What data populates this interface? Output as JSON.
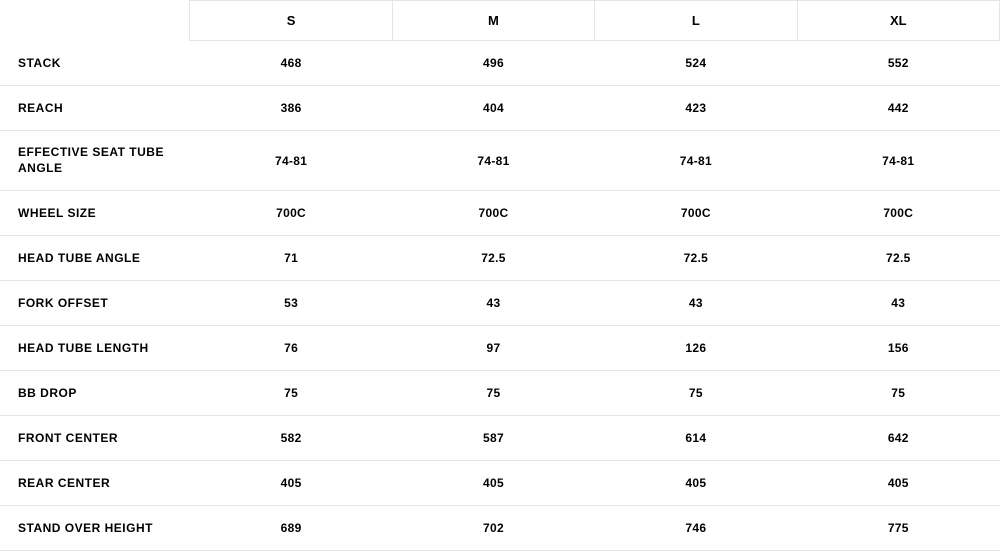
{
  "table": {
    "type": "table",
    "background_color": "#ffffff",
    "text_color": "#000000",
    "border_color": "#e5e5e5",
    "header_fontsize": 13,
    "row_label_fontsize": 12,
    "cell_fontsize": 12,
    "font_weight": "700",
    "columns": [
      "S",
      "M",
      "L",
      "XL"
    ],
    "rows": [
      {
        "label": "STACK",
        "values": [
          "468",
          "496",
          "524",
          "552"
        ]
      },
      {
        "label": "REACH",
        "values": [
          "386",
          "404",
          "423",
          "442"
        ]
      },
      {
        "label": "EFFECTIVE SEAT TUBE ANGLE",
        "values": [
          "74-81",
          "74-81",
          "74-81",
          "74-81"
        ]
      },
      {
        "label": "WHEEL SIZE",
        "values": [
          "700C",
          "700C",
          "700C",
          "700C"
        ]
      },
      {
        "label": "HEAD TUBE ANGLE",
        "values": [
          "71",
          "72.5",
          "72.5",
          "72.5"
        ]
      },
      {
        "label": "FORK OFFSET",
        "values": [
          "53",
          "43",
          "43",
          "43"
        ]
      },
      {
        "label": "HEAD TUBE LENGTH",
        "values": [
          "76",
          "97",
          "126",
          "156"
        ]
      },
      {
        "label": "BB DROP",
        "values": [
          "75",
          "75",
          "75",
          "75"
        ]
      },
      {
        "label": "FRONT CENTER",
        "values": [
          "582",
          "587",
          "614",
          "642"
        ]
      },
      {
        "label": "REAR CENTER",
        "values": [
          "405",
          "405",
          "405",
          "405"
        ]
      },
      {
        "label": "STAND OVER HEIGHT",
        "values": [
          "689",
          "702",
          "746",
          "775"
        ]
      }
    ]
  }
}
